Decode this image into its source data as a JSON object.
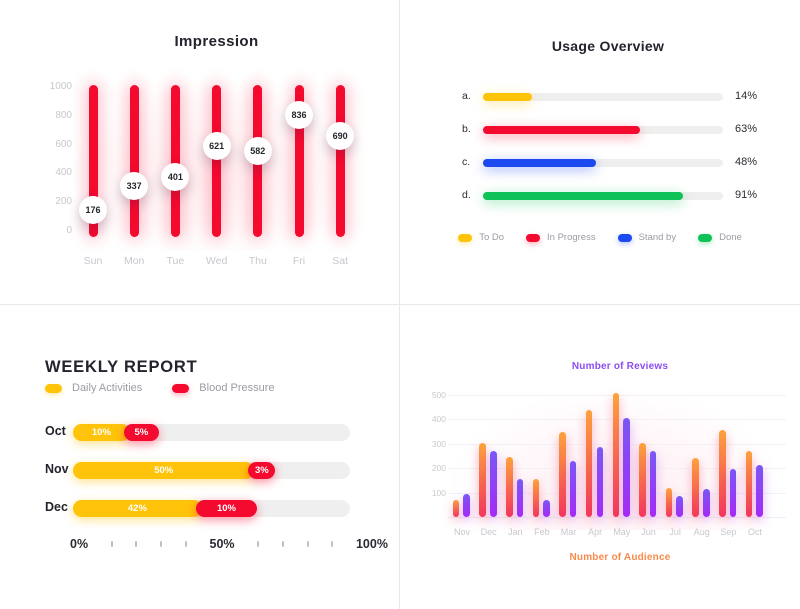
{
  "colors": {
    "red": "#F4092F",
    "yellow": "#FFC40A",
    "blue": "#1C49F0",
    "green": "#0EC257",
    "track_gray": "#EFEFEF",
    "divider": "#E9E9EC",
    "dark_text": "#23232D",
    "muted_text": "#C7C7CE",
    "legend_text": "#9B9BA3"
  },
  "chart_data": [
    {
      "id": "impression",
      "type": "bar",
      "subtype": "vertical-slider-bars",
      "title": "Impression",
      "categories": [
        "Sun",
        "Mon",
        "Tue",
        "Wed",
        "Thu",
        "Fri",
        "Sat"
      ],
      "values": [
        176,
        337,
        401,
        621,
        582,
        836,
        690
      ],
      "ylim": [
        0,
        1000
      ],
      "y_ticks": [
        1000,
        800,
        600,
        400,
        200,
        0
      ],
      "bar_color": "#F4092F",
      "grid": false
    },
    {
      "id": "usage_overview",
      "type": "bar",
      "subtype": "horizontal-progress",
      "title": "Usage Overview",
      "rows": [
        {
          "label": "a.",
          "series": "To Do",
          "value": 14,
          "value_label": "14%",
          "display_pct": 20.5,
          "color": "#FFC40A"
        },
        {
          "label": "b.",
          "series": "In Progress",
          "value": 63,
          "value_label": "63%",
          "display_pct": 65.5,
          "color": "#F4092F"
        },
        {
          "label": "c.",
          "series": "Stand by",
          "value": 48,
          "value_label": "48%",
          "display_pct": 47.0,
          "color": "#1C49F0"
        },
        {
          "label": "d.",
          "series": "Done",
          "value": 91,
          "value_label": "91%",
          "display_pct": 83.5,
          "color": "#0EC257"
        }
      ],
      "legend": [
        {
          "label": "To Do",
          "color": "#FFC40A"
        },
        {
          "label": "In Progress",
          "color": "#F4092F"
        },
        {
          "label": "Stand by",
          "color": "#1C49F0"
        },
        {
          "label": "Done",
          "color": "#0EC257"
        }
      ],
      "legend_position": "bottom"
    },
    {
      "id": "weekly_report",
      "type": "bar",
      "subtype": "horizontal-stacked",
      "title": "WEEKLY REPORT",
      "legend": [
        {
          "label": "Daily Activities",
          "color": "#FFC40A"
        },
        {
          "label": "Blood Pressure",
          "color": "#F4092F"
        }
      ],
      "rows": [
        {
          "label": "Oct",
          "segments": [
            {
              "series": "Daily Activities",
              "value": 10,
              "value_label": "10%",
              "display_pct": 20.5,
              "color": "#FFC40A"
            },
            {
              "series": "Blood Pressure",
              "value": 5,
              "value_label": "5%",
              "display_pct": 10.5,
              "color": "#F4092F"
            }
          ]
        },
        {
          "label": "Nov",
          "segments": [
            {
              "series": "Daily Activities",
              "value": 50,
              "value_label": "50%",
              "display_pct": 65.5,
              "color": "#FFC40A"
            },
            {
              "series": "Blood Pressure",
              "value": 3,
              "value_label": "3%",
              "display_pct": 7.5,
              "color": "#F4092F"
            }
          ]
        },
        {
          "label": "Dec",
          "segments": [
            {
              "series": "Daily Activities",
              "value": 42,
              "value_label": "42%",
              "display_pct": 46.5,
              "color": "#FFC40A"
            },
            {
              "series": "Blood Pressure",
              "value": 10,
              "value_label": "10%",
              "display_pct": 20.0,
              "color": "#F4092F"
            }
          ]
        }
      ],
      "x_axis_labels": [
        "0%",
        "50%",
        "100%"
      ],
      "xlim": [
        0,
        100
      ]
    },
    {
      "id": "reviews_audience",
      "type": "bar",
      "subtype": "grouped-vertical",
      "title_top": "Number of Reviews",
      "title_top_color": "#8B4DF4",
      "title_bottom": "Number of Audience",
      "title_bottom_color": "#FB8A4C",
      "categories": [
        "Nov",
        "Dec",
        "Jan",
        "Feb",
        "Mar",
        "Apr",
        "May",
        "Jun",
        "Jul",
        "Aug",
        "Sep",
        "Oct"
      ],
      "series": [
        {
          "name": "Number of Audience",
          "values": [
            70,
            305,
            245,
            155,
            350,
            440,
            510,
            305,
            120,
            240,
            355,
            270
          ],
          "gradient": [
            "#FCA23C",
            "#F5375A"
          ]
        },
        {
          "name": "Number of Reviews",
          "values": [
            95,
            270,
            155,
            70,
            230,
            285,
            405,
            270,
            85,
            115,
            195,
            215
          ],
          "gradient": [
            "#7A58F5",
            "#A42BF5"
          ]
        }
      ],
      "y_ticks": [
        500,
        400,
        300,
        200,
        100
      ],
      "ylim": [
        0,
        500
      ],
      "grid": true
    }
  ]
}
